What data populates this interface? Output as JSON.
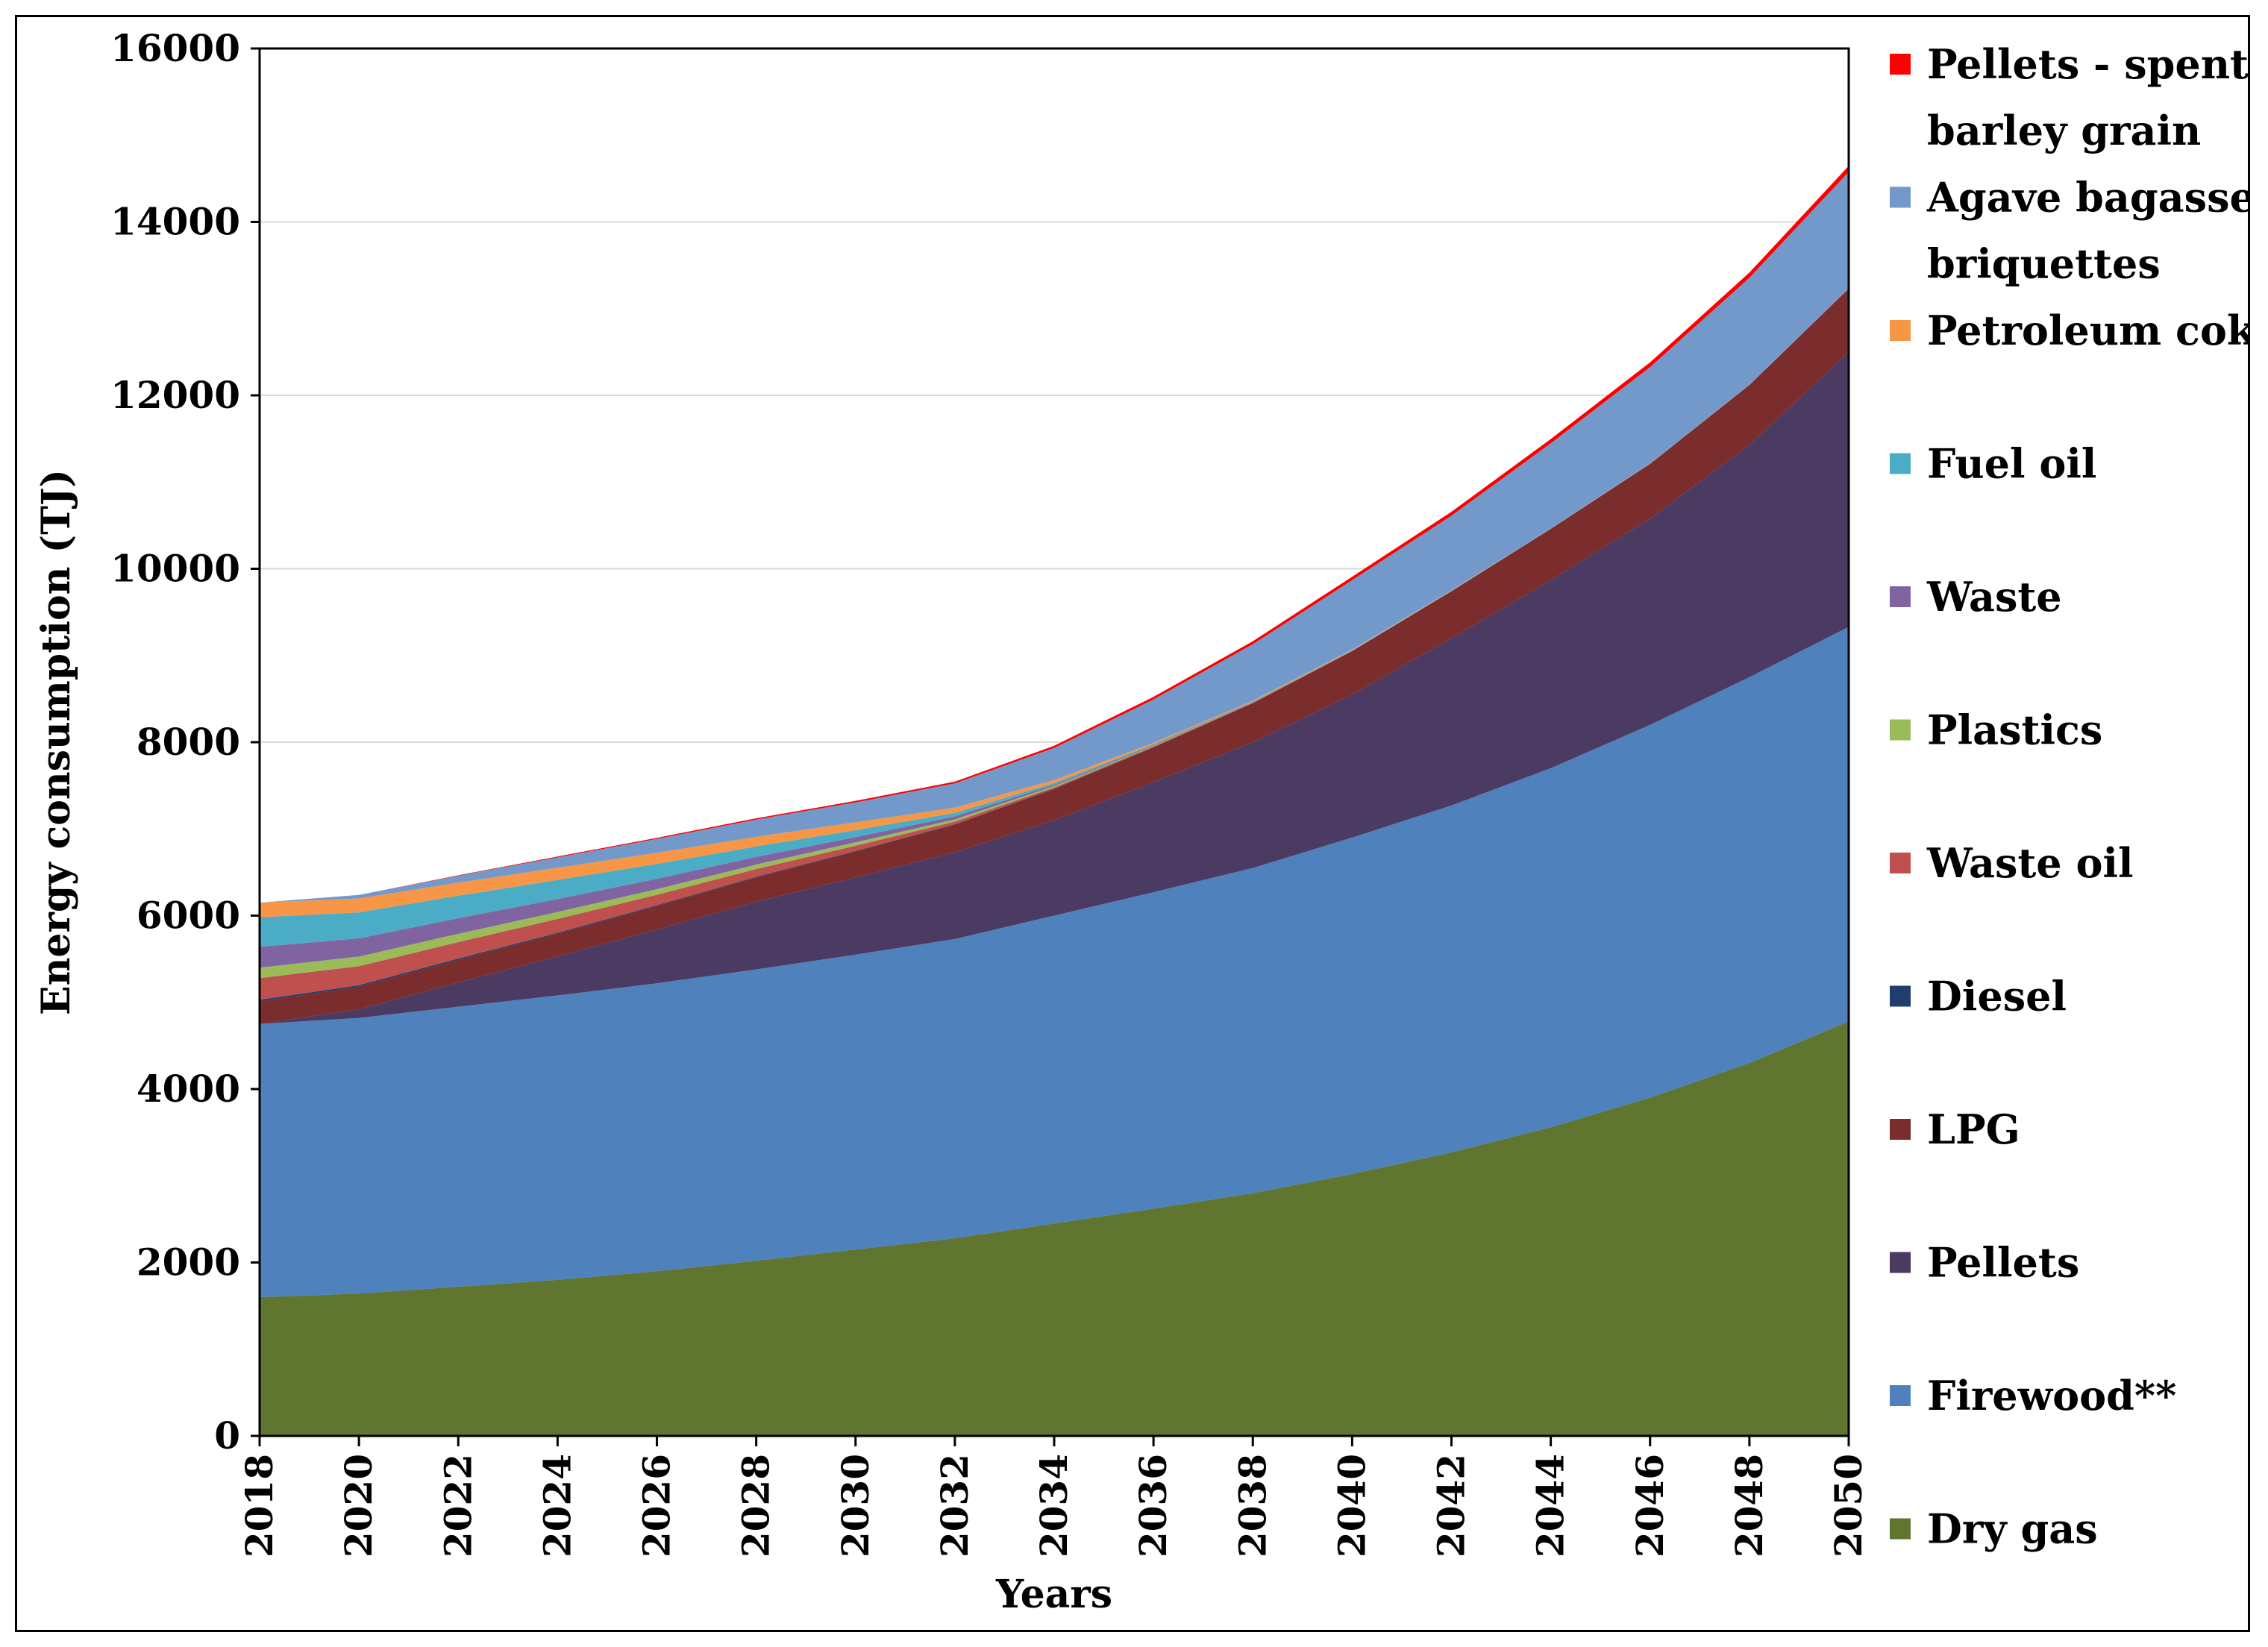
{
  "chart_data": {
    "type": "area",
    "stacked": true,
    "title": "",
    "xlabel": "Years",
    "ylabel": "Energy consumption (TJ)",
    "xlim": [
      2018,
      2050
    ],
    "ylim": [
      0,
      16000
    ],
    "x_ticks": [
      2018,
      2020,
      2022,
      2024,
      2026,
      2028,
      2030,
      2032,
      2034,
      2036,
      2038,
      2040,
      2042,
      2044,
      2046,
      2048,
      2050
    ],
    "y_ticks": [
      0,
      2000,
      4000,
      6000,
      8000,
      10000,
      12000,
      14000,
      16000
    ],
    "grid": "horizontal",
    "legend_position": "right",
    "x": [
      2018,
      2020,
      2022,
      2024,
      2026,
      2028,
      2030,
      2032,
      2034,
      2036,
      2038,
      2040,
      2042,
      2044,
      2046,
      2048,
      2050
    ],
    "series": [
      {
        "name": "Dry gas",
        "color": "#5f7530",
        "values": [
          1600,
          1640,
          1720,
          1800,
          1900,
          2020,
          2150,
          2280,
          2450,
          2620,
          2800,
          3020,
          3270,
          3560,
          3900,
          4300,
          4780
        ]
      },
      {
        "name": "Firewood**",
        "color": "#4f81bd",
        "values": [
          3150,
          3180,
          3230,
          3280,
          3320,
          3360,
          3400,
          3450,
          3550,
          3650,
          3750,
          3880,
          4000,
          4140,
          4300,
          4450,
          4550
        ]
      },
      {
        "name": "Pellets",
        "color": "#4b3a62",
        "values": [
          0,
          100,
          280,
          450,
          620,
          780,
          890,
          1000,
          1100,
          1270,
          1450,
          1650,
          1930,
          2170,
          2380,
          2680,
          3170
        ]
      },
      {
        "name": "LPG",
        "color": "#7b2c2c",
        "values": [
          260,
          260,
          260,
          260,
          270,
          280,
          300,
          320,
          360,
          400,
          450,
          500,
          540,
          590,
          630,
          690,
          730
        ]
      },
      {
        "name": "Diesel",
        "color": "#1f3e6b",
        "values": [
          20,
          18,
          15,
          12,
          10,
          8,
          6,
          5,
          4,
          3,
          2,
          2,
          2,
          1,
          1,
          1,
          1
        ]
      },
      {
        "name": "Waste oil",
        "color": "#c0504d",
        "values": [
          250,
          220,
          190,
          160,
          120,
          90,
          60,
          30,
          15,
          8,
          5,
          3,
          2,
          1,
          1,
          1,
          1
        ]
      },
      {
        "name": "Plastics",
        "color": "#9bbb59",
        "values": [
          120,
          110,
          95,
          80,
          65,
          50,
          40,
          25,
          15,
          8,
          5,
          3,
          2,
          1,
          1,
          1,
          1
        ]
      },
      {
        "name": "Waste",
        "color": "#8064a2",
        "values": [
          240,
          210,
          180,
          150,
          120,
          90,
          60,
          35,
          15,
          8,
          5,
          3,
          2,
          1,
          1,
          1,
          1
        ]
      },
      {
        "name": "Fuel oil",
        "color": "#4bacc6",
        "values": [
          340,
          300,
          260,
          220,
          170,
          120,
          80,
          40,
          20,
          10,
          5,
          3,
          2,
          1,
          1,
          1,
          1
        ]
      },
      {
        "name": "Petroleum coke",
        "color": "#f79646",
        "values": [
          170,
          160,
          150,
          140,
          130,
          110,
          90,
          60,
          35,
          15,
          8,
          4,
          2,
          1,
          1,
          1,
          1
        ]
      },
      {
        "name": "Agave bagasse briquettes",
        "color": "#7399cb",
        "values": [
          0,
          40,
          80,
          120,
          160,
          200,
          230,
          280,
          370,
          500,
          650,
          800,
          860,
          980,
          1110,
          1230,
          1340
        ]
      },
      {
        "name": "Pellets - spent barley grain",
        "color": "#ff0000",
        "values": [
          0,
          0,
          5,
          10,
          12,
          15,
          18,
          20,
          25,
          30,
          35,
          40,
          45,
          50,
          55,
          60,
          70
        ]
      }
    ],
    "legend": [
      "Pellets - spent barley grain",
      "Agave bagasse briquettes",
      "Petroleum coke",
      "Fuel oil",
      "Waste",
      "Plastics",
      "Waste oil",
      "Diesel",
      "LPG",
      "Pellets",
      "Firewood**",
      "Dry gas"
    ],
    "legend_lines": {
      "Pellets - spent barley grain": [
        "Pellets - spent",
        "barley grain"
      ],
      "Agave bagasse briquettes": [
        "Agave bagasse",
        "briquettes"
      ]
    }
  }
}
